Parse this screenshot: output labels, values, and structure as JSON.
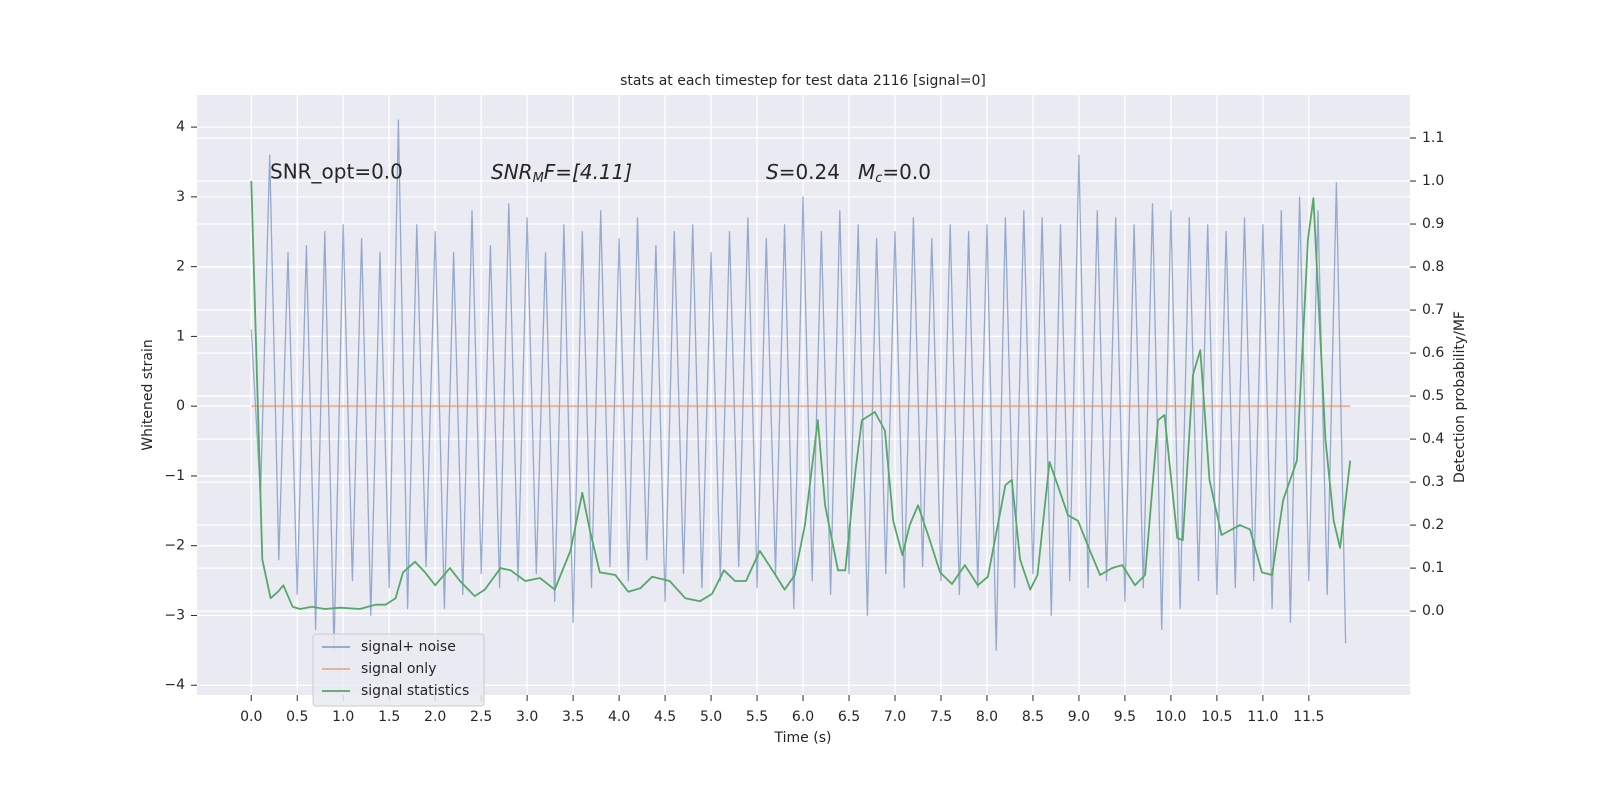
{
  "chart_data": {
    "type": "line",
    "title": "stats at each timestep for test data 2116 [signal=0]",
    "x_label": "Time (s)",
    "y_label": "Whitened strain",
    "y2_label": "Detection probability/MF",
    "annotations": [
      {
        "text": "SNR_opt=0.0"
      },
      {
        "base": "SNR",
        "sub": "M",
        "rest": "F=[4.11]"
      },
      {
        "base": "S",
        "rest": "=0.24"
      },
      {
        "base": "M",
        "sub": "c",
        "rest": "=0.0"
      }
    ],
    "xlim": [
      -0.59,
      12.6
    ],
    "ylim": [
      -4.14,
      4.46
    ],
    "y2lim": [
      -0.195,
      1.2
    ],
    "xticks": [
      {
        "value": 0,
        "label": "0.0"
      },
      0.5,
      {
        "value": 1,
        "label": "1.0"
      },
      1.5,
      {
        "value": 2,
        "label": "2.0"
      },
      2.5,
      {
        "value": 3,
        "label": "3.0"
      },
      3.5,
      {
        "value": 4,
        "label": "4.0"
      },
      4.5,
      {
        "value": 5,
        "label": "5.0"
      },
      5.5,
      {
        "value": 6,
        "label": "6.0"
      },
      6.5,
      {
        "value": 7,
        "label": "7.0"
      },
      7.5,
      {
        "value": 8,
        "label": "8.0"
      },
      8.5,
      {
        "value": 9,
        "label": "9.0"
      },
      9.5,
      {
        "value": 10,
        "label": "10.0"
      },
      10.5,
      {
        "value": 11,
        "label": "11.0"
      },
      11.5
    ],
    "yticks": [
      {
        "value": -4,
        "label": "−4"
      },
      {
        "value": -3,
        "label": "−3"
      },
      {
        "value": -2,
        "label": "−2"
      },
      {
        "value": -1,
        "label": "−1"
      },
      0,
      1,
      2,
      3,
      4
    ],
    "y2ticks": [
      {
        "value": 0,
        "label": "0.0"
      },
      0.1,
      0.2,
      0.3,
      0.4,
      0.5,
      0.6,
      0.7,
      0.8,
      0.9,
      {
        "value": 1,
        "label": "1.0"
      },
      1.1
    ],
    "grid": true,
    "legend": "lower left",
    "series": [
      {
        "name": "signal+ noise",
        "color": "#4c72b0",
        "axis": "y",
        "x": [
          0,
          0.1,
          0.2,
          0.3,
          0.4,
          0.5,
          0.6,
          0.7,
          0.8,
          0.9,
          1,
          1.1,
          1.2,
          1.3,
          1.4,
          1.5,
          1.6,
          1.7,
          1.8,
          1.9,
          2,
          2.1,
          2.2,
          2.3,
          2.4,
          2.5,
          2.6,
          2.7,
          2.8,
          2.9,
          3,
          3.1,
          3.2,
          3.3,
          3.4,
          3.5,
          3.6,
          3.7,
          3.8,
          3.9,
          4,
          4.1,
          4.2,
          4.3,
          4.4,
          4.5,
          4.6,
          4.7,
          4.8,
          4.9,
          5,
          5.1,
          5.2,
          5.3,
          5.4,
          5.5,
          5.6,
          5.7,
          5.8,
          5.9,
          6,
          6.1,
          6.2,
          6.3,
          6.4,
          6.5,
          6.6,
          6.7,
          6.8,
          6.9,
          7,
          7.1,
          7.2,
          7.3,
          7.4,
          7.5,
          7.6,
          7.7,
          7.8,
          7.9,
          8,
          8.1,
          8.2,
          8.3,
          8.4,
          8.5,
          8.6,
          8.7,
          8.8,
          8.9,
          9,
          9.1,
          9.2,
          9.3,
          9.4,
          9.5,
          9.6,
          9.7,
          9.8,
          9.9,
          10,
          10.1,
          10.2,
          10.3,
          10.4,
          10.5,
          10.6,
          10.7,
          10.8,
          10.9,
          11,
          11.1,
          11.2,
          11.3,
          11.4,
          11.5,
          11.6,
          11.7,
          11.8,
          11.9
        ],
        "values": [
          1.1,
          -1.3,
          3.6,
          -2.2,
          2.2,
          -2.7,
          2.3,
          -3.2,
          2.5,
          -3.5,
          2.6,
          -2.5,
          2.4,
          -3.0,
          2.2,
          -2.6,
          4.1,
          -2.9,
          2.6,
          -2.3,
          2.5,
          -2.9,
          2.2,
          -2.7,
          2.8,
          -2.4,
          2.3,
          -2.6,
          2.9,
          -2.5,
          2.7,
          -2.4,
          2.2,
          -2.8,
          2.6,
          -3.1,
          2.5,
          -2.6,
          2.8,
          -2.3,
          2.4,
          -2.5,
          2.7,
          -2.2,
          2.3,
          -2.8,
          2.5,
          -2.4,
          2.6,
          -2.6,
          2.2,
          -2.5,
          2.5,
          -2.3,
          2.7,
          -2.6,
          2.4,
          -2.4,
          2.6,
          -2.9,
          3.0,
          -2.5,
          2.5,
          -2.7,
          2.8,
          -2.4,
          2.6,
          -3.0,
          2.4,
          -2.4,
          2.5,
          -2.6,
          2.7,
          -2.3,
          2.4,
          -2.5,
          2.6,
          -2.7,
          2.5,
          -2.6,
          2.6,
          -3.5,
          2.7,
          -2.6,
          2.8,
          -2.4,
          2.7,
          -3.0,
          2.6,
          -2.5,
          3.6,
          -2.6,
          2.8,
          -2.5,
          2.7,
          -2.8,
          2.6,
          -2.6,
          2.9,
          -3.2,
          2.8,
          -2.9,
          2.7,
          -2.5,
          2.6,
          -2.7,
          2.5,
          -2.6,
          2.7,
          -2.5,
          2.6,
          -2.9,
          2.8,
          -3.1,
          3.0,
          -2.5,
          2.8,
          -2.7,
          3.2,
          -3.4
        ]
      },
      {
        "name": "signal only",
        "color": "#dd8452",
        "axis": "y",
        "x": [
          0,
          11.95
        ],
        "values": [
          0,
          0
        ]
      },
      {
        "name": "signal statistics",
        "color": "#55a868",
        "axis": "y2",
        "x": [
          0,
          0.12,
          0.21,
          0.29,
          0.35,
          0.45,
          0.53,
          0.66,
          0.8,
          0.97,
          1.18,
          1.35,
          1.46,
          1.57,
          1.65,
          1.78,
          1.89,
          2,
          2.16,
          2.27,
          2.43,
          2.54,
          2.71,
          2.82,
          2.98,
          3.14,
          3.3,
          3.47,
          3.6,
          3.68,
          3.79,
          3.96,
          4.1,
          4.23,
          4.36,
          4.55,
          4.72,
          4.88,
          5.01,
          5.14,
          5.26,
          5.38,
          5.53,
          5.7,
          5.8,
          5.91,
          6.02,
          6.16,
          6.24,
          6.38,
          6.46,
          6.57,
          6.64,
          6.78,
          6.89,
          6.98,
          7.08,
          7.16,
          7.25,
          7.36,
          7.49,
          7.62,
          7.76,
          7.9,
          8.01,
          8.2,
          8.27,
          8.36,
          8.47,
          8.55,
          8.68,
          8.79,
          8.88,
          8.99,
          9.12,
          9.23,
          9.36,
          9.47,
          9.61,
          9.72,
          9.86,
          9.93,
          10.07,
          10.13,
          10.24,
          10.32,
          10.42,
          10.55,
          10.75,
          10.86,
          10.99,
          11.1,
          11.22,
          11.37,
          11.49,
          11.55,
          11.68,
          11.77,
          11.84,
          11.95
        ],
        "values": [
          1.0,
          0.12,
          0.03,
          0.045,
          0.06,
          0.01,
          0.005,
          0.01,
          0.005,
          0.008,
          0.005,
          0.015,
          0.015,
          0.03,
          0.09,
          0.115,
          0.09,
          0.06,
          0.1,
          0.07,
          0.035,
          0.05,
          0.1,
          0.095,
          0.07,
          0.077,
          0.05,
          0.14,
          0.275,
          0.19,
          0.09,
          0.084,
          0.045,
          0.053,
          0.08,
          0.07,
          0.03,
          0.023,
          0.04,
          0.095,
          0.07,
          0.07,
          0.14,
          0.084,
          0.05,
          0.084,
          0.2,
          0.444,
          0.246,
          0.095,
          0.095,
          0.328,
          0.444,
          0.463,
          0.42,
          0.21,
          0.13,
          0.2,
          0.246,
          0.177,
          0.09,
          0.063,
          0.107,
          0.06,
          0.08,
          0.293,
          0.305,
          0.12,
          0.05,
          0.084,
          0.347,
          0.28,
          0.223,
          0.21,
          0.14,
          0.084,
          0.1,
          0.107,
          0.06,
          0.084,
          0.444,
          0.456,
          0.17,
          0.165,
          0.55,
          0.607,
          0.305,
          0.177,
          0.2,
          0.19,
          0.09,
          0.084,
          0.258,
          0.35,
          0.863,
          0.96,
          0.4,
          0.21,
          0.147,
          0.35
        ]
      }
    ]
  }
}
